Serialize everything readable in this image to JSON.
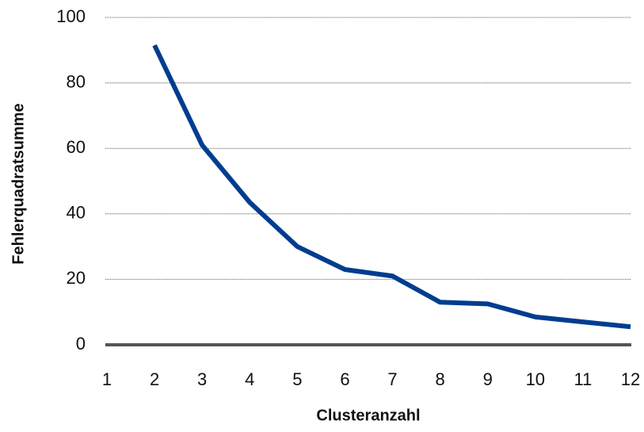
{
  "chart_data": {
    "type": "line",
    "x_label": "Clusteranzahl",
    "y_label": "Fehlerquadratsumme",
    "x": [
      2,
      3,
      4,
      5,
      6,
      7,
      8,
      9,
      10,
      11,
      12
    ],
    "series": [
      {
        "color": "#003d8f",
        "values": [
          91.5,
          61,
          43.5,
          30,
          23,
          21,
          13,
          12.5,
          8.5,
          7,
          5.5
        ]
      }
    ],
    "xlim": [
      1,
      12
    ],
    "xticks": [
      1,
      2,
      3,
      4,
      5,
      6,
      7,
      8,
      9,
      10,
      11,
      12
    ],
    "ylim": [
      0,
      100
    ],
    "yticks": [
      0,
      20,
      40,
      60,
      80,
      100
    ],
    "grid": true
  }
}
